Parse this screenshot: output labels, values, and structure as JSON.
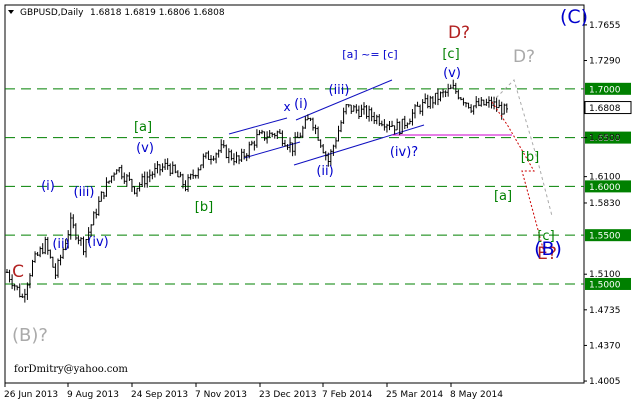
{
  "chart_data": {
    "type": "candlestick",
    "title": "GBPUSD,Daily",
    "ohlc_readout": [
      "1.6818",
      "1.6819",
      "1.6806",
      "1.6808"
    ],
    "footer": "forDmitry@yahoo.com",
    "ylim": [
      1.3985,
      1.7859
    ],
    "y_ticks": [
      "1.7655",
      "1.7290",
      "1.6500",
      "1.6100",
      "1.5830",
      "1.5100",
      "1.4735",
      "1.4370",
      "1.4005"
    ],
    "x_ticks": [
      "26 Jun 2013",
      "9 Aug 2013",
      "24 Sep 2013",
      "7 Nov 2013",
      "23 Dec 2013",
      "7 Feb 2014",
      "25 Mar 2014",
      "8 May 2014"
    ],
    "h_levels": [
      {
        "value": 1.7,
        "label": "1.7000",
        "color": "#008000"
      },
      {
        "value": 1.65,
        "label": "1.6500",
        "color": "#008000"
      },
      {
        "value": 1.6,
        "label": "1.6000",
        "color": "#008000"
      },
      {
        "value": 1.55,
        "label": "1.5500",
        "color": "#008000"
      },
      {
        "value": 1.5,
        "label": "1.5000",
        "color": "#008000"
      }
    ],
    "current_price": {
      "value": 1.6808,
      "label": "1.6808"
    },
    "price_path": [
      [
        0,
        1.512
      ],
      [
        6,
        1.486
      ],
      [
        10,
        1.521
      ],
      [
        15,
        1.541
      ],
      [
        19,
        1.51
      ],
      [
        25,
        1.562
      ],
      [
        30,
        1.539
      ],
      [
        37,
        1.59
      ],
      [
        43,
        1.621
      ],
      [
        50,
        1.598
      ],
      [
        56,
        1.612
      ],
      [
        63,
        1.622
      ],
      [
        70,
        1.6
      ],
      [
        77,
        1.628
      ],
      [
        84,
        1.638
      ],
      [
        91,
        1.626
      ],
      [
        98,
        1.65
      ],
      [
        106,
        1.655
      ],
      [
        112,
        1.64
      ],
      [
        119,
        1.672
      ],
      [
        126,
        1.626
      ],
      [
        133,
        1.681
      ],
      [
        140,
        1.676
      ],
      [
        147,
        1.668
      ],
      [
        154,
        1.66
      ],
      [
        161,
        1.68
      ],
      [
        168,
        1.69
      ],
      [
        175,
        1.7
      ],
      [
        182,
        1.682
      ],
      [
        190,
        1.685
      ],
      [
        196,
        1.676
      ]
    ],
    "wave_labels": [
      {
        "text": "C",
        "color": "#b22222",
        "size": 17,
        "pos": [
          18,
          277
        ]
      },
      {
        "text": "(B)?",
        "color": "#aaaaaa",
        "size": 18,
        "pos": [
          30,
          341
        ]
      },
      {
        "text": "(i)",
        "color": "#0000cc",
        "size": 13,
        "pos": [
          48,
          190
        ]
      },
      {
        "text": "(ii)",
        "color": "#0000cc",
        "size": 13,
        "pos": [
          61,
          248
        ]
      },
      {
        "text": "(iii)",
        "color": "#0000cc",
        "size": 13,
        "pos": [
          84,
          196
        ]
      },
      {
        "text": "(iv)",
        "color": "#0000cc",
        "size": 13,
        "pos": [
          98,
          246
        ]
      },
      {
        "text": "(v)",
        "color": "#0000cc",
        "size": 13,
        "pos": [
          145,
          152
        ]
      },
      {
        "text": "[a]",
        "color": "#008000",
        "size": 13,
        "pos": [
          143,
          131
        ]
      },
      {
        "text": "[b]",
        "color": "#008000",
        "size": 13,
        "pos": [
          204,
          211
        ]
      },
      {
        "text": "x",
        "color": "#0000cc",
        "size": 12,
        "pos": [
          287,
          111
        ]
      },
      {
        "text": "(i)",
        "color": "#0000cc",
        "size": 13,
        "pos": [
          301,
          108
        ]
      },
      {
        "text": "(ii)",
        "color": "#0000cc",
        "size": 13,
        "pos": [
          325,
          175
        ]
      },
      {
        "text": "(iii)",
        "color": "#0000cc",
        "size": 13,
        "pos": [
          339,
          94
        ]
      },
      {
        "text": "[a] ~= [c]",
        "color": "#0000cc",
        "size": 11,
        "pos": [
          370,
          58
        ]
      },
      {
        "text": "(iv)?",
        "color": "#0000cc",
        "size": 13,
        "pos": [
          404,
          156
        ]
      },
      {
        "text": "(v)",
        "color": "#0000cc",
        "size": 13,
        "pos": [
          452,
          77
        ]
      },
      {
        "text": "[c]",
        "color": "#008000",
        "size": 13,
        "pos": [
          451,
          58
        ]
      },
      {
        "text": "D?",
        "color": "#b22222",
        "size": 17,
        "pos": [
          459,
          38
        ]
      },
      {
        "text": "D?",
        "color": "#aaaaaa",
        "size": 17,
        "pos": [
          524,
          62
        ]
      },
      {
        "text": "(C)",
        "color": "#0000cc",
        "size": 19,
        "pos": [
          574,
          23
        ]
      },
      {
        "text": "[b]",
        "color": "#008000",
        "size": 13,
        "pos": [
          530,
          161
        ]
      },
      {
        "text": "[a]",
        "color": "#008000",
        "size": 13,
        "pos": [
          503,
          200
        ]
      },
      {
        "text": "[c]",
        "color": "#008000",
        "size": 13,
        "pos": [
          546,
          240
        ]
      },
      {
        "text": "E?",
        "color": "#b22222",
        "size": 17,
        "pos": [
          547,
          259
        ]
      },
      {
        "text": "(B)",
        "color": "#0000cc",
        "size": 19,
        "pos": [
          548,
          255
        ]
      }
    ]
  }
}
